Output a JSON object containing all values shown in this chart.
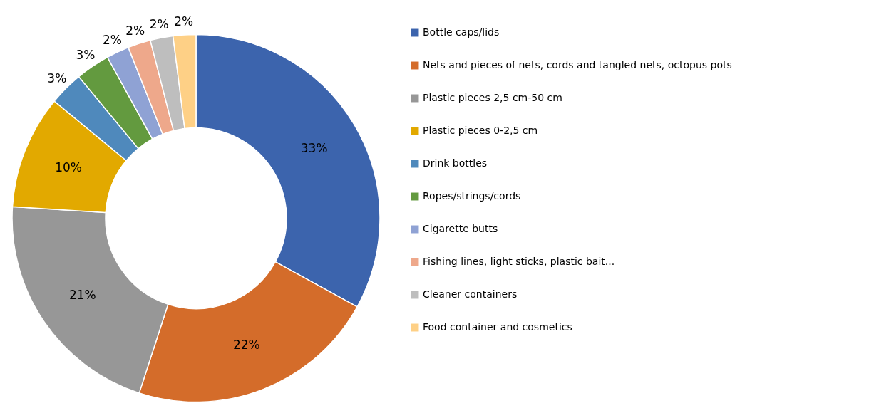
{
  "chart_data": {
    "type": "donut",
    "categories": [
      "Bottle caps/lids",
      "Nets and pieces of nets, cords and tangled nets, octopus pots",
      "Plastic pieces 2,5 cm-50 cm",
      "Plastic pieces 0-2,5 cm",
      "Drink bottles",
      "Ropes/strings/cords",
      "Cigarette butts",
      "Fishing lines, light sticks, plastic bait...",
      "Cleaner containers",
      "Food container and cosmetics"
    ],
    "values": [
      33,
      22,
      21,
      10,
      3,
      3,
      2,
      2,
      2,
      2
    ],
    "value_labels": [
      "33%",
      "22%",
      "21%",
      "10%",
      "3%",
      "3%",
      "2%",
      "2%",
      "2%",
      "2%"
    ],
    "colors": [
      "#3c64ad",
      "#d46c2a",
      "#979797",
      "#e2a900",
      "#4f89bc",
      "#639a3f",
      "#8fa2d4",
      "#eea88b",
      "#bebebe",
      "#fed086"
    ],
    "legend": "right"
  }
}
